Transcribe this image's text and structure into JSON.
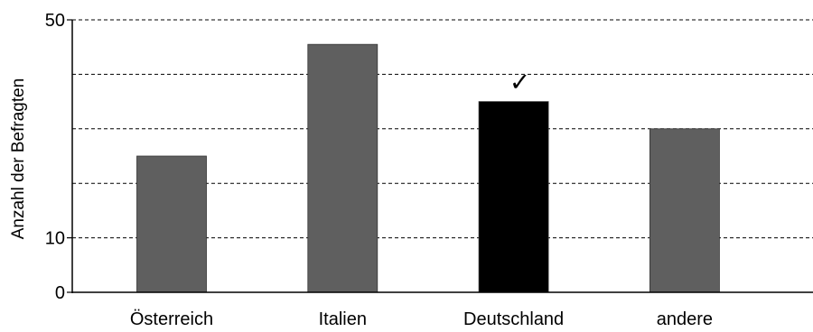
{
  "chart_data": {
    "type": "bar",
    "title": "",
    "xlabel": "",
    "ylabel": "Anzahl der Befragten",
    "categories": [
      "Österreich",
      "Italien",
      "Deutschland",
      "andere"
    ],
    "values": [
      25,
      45.5,
      35,
      30
    ],
    "ylim": [
      0,
      50
    ],
    "yticks": [
      0,
      10,
      50
    ],
    "gridlines": [
      10,
      20,
      30,
      40,
      50
    ],
    "grid": true,
    "highlighted_category": "Deutschland",
    "highlight_marker": "✓",
    "colors": {
      "bar": "#5f5f5f",
      "highlight": "#000000"
    }
  }
}
